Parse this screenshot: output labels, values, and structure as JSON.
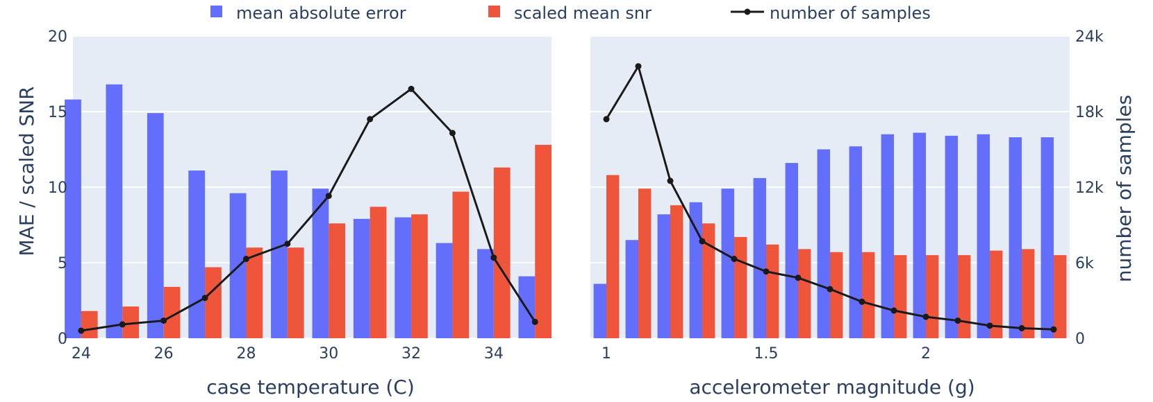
{
  "colors": {
    "mae": "#636efa",
    "snr": "#ef553b",
    "samples": "#1a1a1a",
    "plot_bg": "#e5ecf6",
    "grid": "#ffffff",
    "text": "#2a3f5f"
  },
  "legend": [
    {
      "label": "mean absolute error",
      "kind": "bar",
      "color": "#636efa"
    },
    {
      "label": "scaled mean snr",
      "kind": "bar",
      "color": "#ef553b"
    },
    {
      "label": "number of samples",
      "kind": "line",
      "color": "#1a1a1a"
    }
  ],
  "y_axis_left": {
    "title": "MAE / scaled SNR",
    "range": [
      0,
      20
    ],
    "ticks": [
      0,
      5,
      10,
      15,
      20
    ],
    "tick_labels": [
      "0",
      "5",
      "10",
      "15",
      "20"
    ]
  },
  "y_axis_right": {
    "title": "number of samples",
    "range": [
      0,
      24000
    ],
    "ticks": [
      0,
      6000,
      12000,
      18000,
      24000
    ],
    "tick_labels": [
      "0",
      "6k",
      "12k",
      "18k",
      "24k"
    ]
  },
  "chart_data": [
    {
      "type": "bar",
      "xlabel": "case temperature (C)",
      "ylabel": "MAE / scaled SNR",
      "y2label": "number of samples",
      "grid": true,
      "legend_position": "top",
      "x": [
        24,
        25,
        26,
        27,
        28,
        29,
        30,
        31,
        32,
        33,
        34,
        35
      ],
      "xlim": [
        23.8,
        35.4
      ],
      "x_ticks": [
        24,
        26,
        28,
        30,
        32,
        34
      ],
      "x_tick_labels": [
        "24",
        "26",
        "28",
        "30",
        "32",
        "34"
      ],
      "ylim": [
        0,
        20
      ],
      "y2lim": [
        0,
        24000
      ],
      "series": [
        {
          "name": "mean absolute error",
          "type": "bar",
          "axis": "y",
          "values": [
            15.8,
            16.8,
            14.9,
            11.1,
            9.6,
            11.1,
            9.9,
            7.9,
            8.0,
            6.3,
            5.9,
            4.1
          ]
        },
        {
          "name": "scaled mean snr",
          "type": "bar",
          "axis": "y",
          "values": [
            1.8,
            2.1,
            3.4,
            4.7,
            6.0,
            6.0,
            7.6,
            8.7,
            8.2,
            9.7,
            11.3,
            12.8
          ]
        },
        {
          "name": "number of samples",
          "type": "line",
          "axis": "y2",
          "values": [
            600,
            1100,
            1400,
            3200,
            6300,
            7500,
            11300,
            17400,
            19800,
            16300,
            6400,
            1300
          ]
        }
      ]
    },
    {
      "type": "bar",
      "xlabel": "accelerometer magnitude (g)",
      "ylabel": "MAE / scaled SNR",
      "y2label": "number of samples",
      "grid": true,
      "legend_position": "top",
      "x": [
        1.0,
        1.1,
        1.2,
        1.3,
        1.4,
        1.5,
        1.6,
        1.7,
        1.8,
        1.9,
        2.0,
        2.1,
        2.2,
        2.3,
        2.4
      ],
      "xlim": [
        0.95,
        2.45
      ],
      "x_ticks": [
        1,
        1.5,
        2
      ],
      "x_tick_labels": [
        "1",
        "1.5",
        "2"
      ],
      "ylim": [
        0,
        20
      ],
      "y2lim": [
        0,
        24000
      ],
      "series": [
        {
          "name": "mean absolute error",
          "type": "bar",
          "axis": "y",
          "values": [
            3.6,
            6.5,
            8.2,
            9.0,
            9.9,
            10.6,
            11.6,
            12.5,
            12.7,
            13.5,
            13.6,
            13.4,
            13.5,
            13.3,
            13.3
          ]
        },
        {
          "name": "scaled mean snr",
          "type": "bar",
          "axis": "y",
          "values": [
            10.8,
            9.9,
            8.8,
            7.6,
            6.7,
            6.2,
            5.9,
            5.7,
            5.7,
            5.5,
            5.5,
            5.5,
            5.8,
            5.9,
            5.5
          ]
        },
        {
          "name": "number of samples",
          "type": "line",
          "axis": "y2",
          "values": [
            17400,
            21600,
            12500,
            7700,
            6300,
            5300,
            4800,
            3900,
            2900,
            2200,
            1700,
            1400,
            1000,
            800,
            700
          ]
        }
      ]
    }
  ]
}
